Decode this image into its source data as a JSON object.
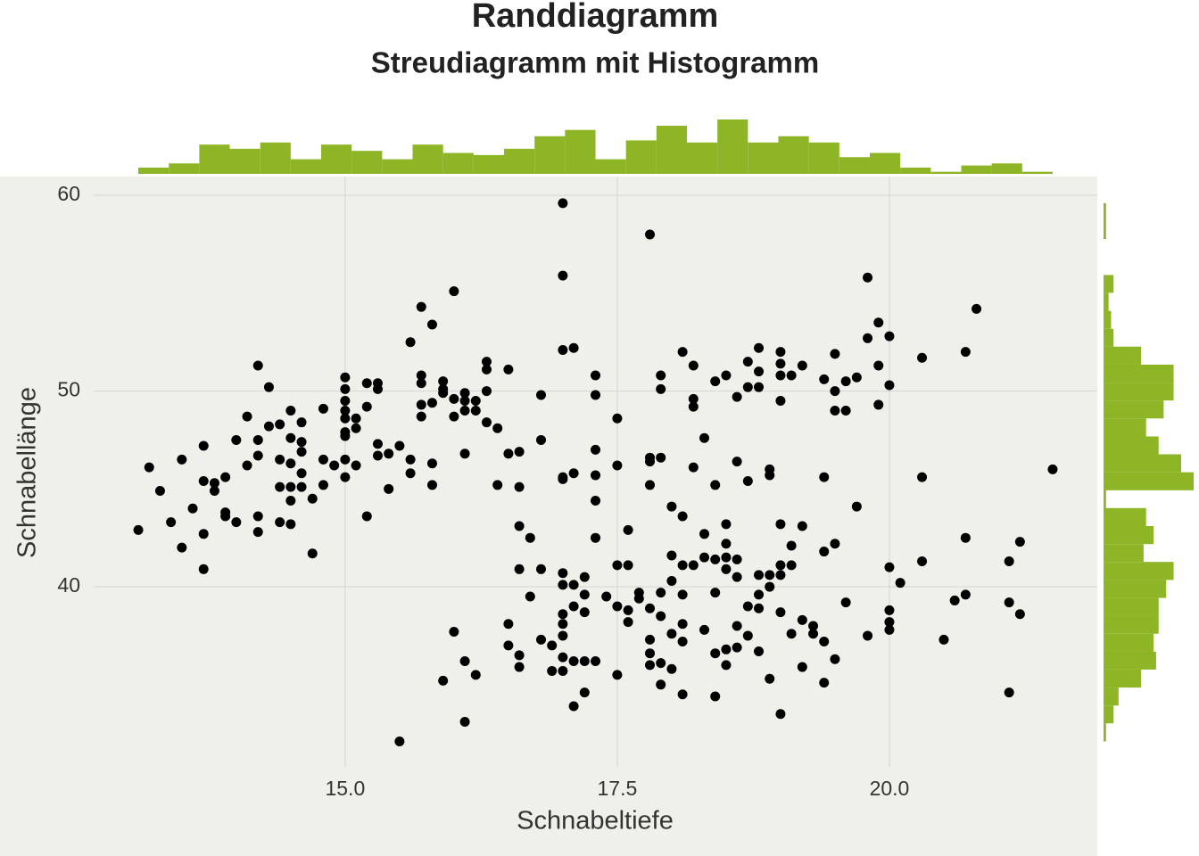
{
  "chart_data": [
    {
      "type": "scatter",
      "title": "Randdiagramm",
      "subtitle": "Streudiagramm mit Histogramm",
      "x_label": "Schnabeltiefe",
      "y_label": "Schnabellänge",
      "color": "#000000",
      "grid": true,
      "xlim": [
        12.69,
        21.91
      ],
      "ylim": [
        30.8,
        60.96
      ],
      "xticks": [
        {
          "value": 15,
          "label": "15.0"
        },
        17.5,
        {
          "value": 20,
          "label": "20.0"
        }
      ],
      "yticks": [
        40,
        50,
        60
      ],
      "x": [
        13.1,
        13.2,
        13.3,
        13.4,
        13.5,
        13.5,
        13.6,
        13.7,
        13.7,
        13.7,
        13.7,
        13.8,
        13.8,
        13.9,
        13.9,
        13.9,
        14.0,
        14.0,
        14.1,
        14.1,
        14.2,
        14.2,
        14.2,
        14.2,
        14.2,
        14.3,
        14.3,
        14.4,
        14.4,
        14.4,
        14.4,
        14.5,
        14.5,
        14.5,
        14.5,
        14.5,
        14.5,
        14.6,
        14.6,
        14.6,
        14.6,
        14.6,
        14.7,
        14.7,
        14.8,
        14.8,
        14.8,
        14.9,
        15.0,
        15.0,
        15.0,
        15.0,
        15.0,
        15.0,
        15.0,
        15.0,
        15.0,
        15.1,
        15.1,
        15.1,
        15.2,
        15.2,
        15.2,
        15.3,
        15.3,
        15.3,
        15.3,
        15.4,
        15.4,
        15.5,
        15.6,
        15.6,
        15.6,
        15.7,
        15.7,
        15.7,
        15.7,
        15.7,
        15.8,
        15.8,
        15.8,
        15.8,
        15.9,
        15.9,
        15.9,
        16.0,
        16.0,
        16.0,
        16.0,
        16.1,
        16.1,
        16.1,
        16.1,
        16.1,
        16.1,
        16.2,
        16.2,
        16.2,
        16.3,
        16.3,
        16.3,
        16.3,
        16.4,
        16.4,
        16.5,
        16.5,
        16.5,
        16.5,
        16.6,
        16.6,
        16.6,
        16.6,
        16.6,
        16.6,
        16.7,
        16.7,
        16.8,
        16.8,
        16.8,
        16.8,
        16.9,
        16.9,
        17.0,
        17.0,
        17.0,
        17.0,
        17.0,
        17.0,
        17.0,
        17.0,
        17.0,
        17.0,
        17.0,
        17.0,
        17.1,
        17.1,
        17.1,
        17.1,
        17.1,
        17.1,
        17.2,
        17.2,
        17.2,
        17.2,
        17.2,
        17.3,
        17.3,
        17.3,
        17.3,
        17.3,
        17.3,
        17.3,
        17.4,
        17.5,
        17.5,
        17.5,
        17.5,
        17.5,
        17.6,
        17.6,
        17.6,
        17.6,
        17.7,
        17.7,
        17.8,
        17.8,
        17.8,
        17.8,
        17.8,
        17.8,
        17.8,
        17.8,
        17.9,
        17.9,
        17.9,
        17.9,
        17.9,
        17.9,
        17.9,
        18.0,
        18.0,
        18.0,
        18.0,
        18.0,
        18.1,
        18.1,
        18.1,
        18.1,
        18.1,
        18.1,
        18.1,
        18.2,
        18.2,
        18.2,
        18.2,
        18.2,
        18.3,
        18.3,
        18.3,
        18.3,
        18.4,
        18.4,
        18.4,
        18.4,
        18.4,
        18.4,
        18.5,
        18.5,
        18.5,
        18.5,
        18.5,
        18.5,
        18.5,
        18.6,
        18.6,
        18.6,
        18.6,
        18.6,
        18.6,
        18.7,
        18.7,
        18.7,
        18.7,
        18.7,
        18.8,
        18.8,
        18.8,
        18.8,
        18.8,
        18.8,
        18.8,
        18.9,
        18.9,
        18.9,
        18.9,
        18.9,
        19.0,
        19.0,
        19.0,
        19.0,
        19.0,
        19.0,
        19.0,
        19.0,
        19.0,
        19.1,
        19.1,
        19.1,
        19.1,
        19.2,
        19.2,
        19.2,
        19.2,
        19.3,
        19.3,
        19.4,
        19.4,
        19.4,
        19.4,
        19.4,
        19.5,
        19.5,
        19.5,
        19.5,
        19.5,
        19.6,
        19.6,
        19.6,
        19.7,
        19.7,
        19.8,
        19.8,
        19.8,
        19.9,
        19.9,
        19.9,
        20.0,
        20.0,
        20.0,
        20.0,
        20.0,
        20.0,
        20.1,
        20.3,
        20.3,
        20.3,
        20.5,
        20.6,
        20.7,
        20.7,
        20.7,
        20.8,
        21.1,
        21.1,
        21.1,
        21.2,
        21.2,
        21.5,
        15.5,
        15.9
      ],
      "y": [
        42.9,
        46.1,
        44.9,
        43.3,
        46.5,
        42.0,
        44.0,
        47.2,
        45.4,
        42.7,
        40.9,
        45.3,
        44.9,
        45.6,
        43.8,
        43.6,
        47.5,
        43.3,
        48.7,
        46.2,
        51.3,
        47.5,
        46.7,
        43.6,
        42.8,
        50.2,
        48.2,
        48.3,
        46.5,
        45.1,
        43.3,
        49.0,
        47.6,
        46.3,
        45.1,
        44.4,
        43.2,
        48.4,
        47.4,
        46.9,
        45.8,
        45.1,
        44.5,
        41.7,
        49.1,
        46.5,
        45.2,
        46.2,
        50.7,
        50.1,
        49.5,
        49.0,
        48.6,
        47.9,
        47.7,
        46.5,
        45.6,
        48.6,
        48.1,
        46.2,
        50.4,
        49.2,
        43.6,
        50.4,
        50.1,
        47.3,
        46.7,
        46.8,
        45.0,
        47.2,
        52.5,
        46.5,
        45.8,
        54.3,
        50.8,
        50.4,
        49.3,
        48.7,
        53.4,
        49.4,
        46.3,
        45.2,
        50.5,
        50.1,
        49.9,
        55.1,
        49.6,
        48.7,
        37.7,
        49.9,
        49.5,
        49.0,
        46.8,
        36.2,
        33.1,
        49.5,
        49.0,
        35.5,
        51.5,
        51.1,
        50.0,
        48.4,
        48.1,
        45.2,
        51.1,
        46.8,
        38.1,
        37.0,
        46.9,
        45.1,
        43.1,
        40.9,
        36.5,
        35.9,
        42.5,
        39.5,
        49.8,
        47.5,
        40.9,
        37.3,
        37.0,
        35.7,
        59.6,
        55.9,
        52.1,
        45.6,
        45.5,
        40.7,
        40.1,
        38.6,
        38.1,
        37.5,
        36.4,
        35.7,
        52.2,
        45.8,
        40.1,
        39.0,
        36.2,
        33.9,
        40.5,
        39.6,
        38.7,
        36.2,
        34.6,
        50.8,
        49.8,
        47.0,
        45.7,
        44.4,
        42.5,
        36.2,
        39.5,
        48.6,
        46.2,
        41.1,
        39.0,
        35.5,
        42.9,
        41.1,
        38.8,
        38.2,
        39.7,
        39.4,
        58.0,
        46.6,
        46.4,
        45.2,
        38.9,
        37.3,
        36.6,
        36.0,
        50.8,
        50.1,
        46.6,
        39.7,
        38.5,
        36.1,
        35.0,
        44.1,
        41.6,
        40.3,
        37.6,
        35.8,
        52.0,
        43.6,
        41.1,
        39.6,
        38.1,
        37.2,
        34.5,
        51.3,
        49.6,
        49.2,
        46.1,
        41.1,
        47.6,
        42.7,
        41.5,
        37.8,
        50.5,
        45.2,
        41.4,
        39.7,
        36.6,
        34.4,
        50.8,
        43.2,
        42.2,
        41.5,
        40.9,
        36.8,
        36.0,
        49.7,
        46.4,
        41.4,
        40.5,
        38.0,
        36.9,
        51.5,
        50.2,
        45.4,
        39.0,
        37.5,
        52.2,
        50.2,
        51.0,
        40.6,
        39.6,
        38.9,
        36.7,
        46.0,
        45.7,
        40.6,
        40.0,
        35.3,
        52.0,
        51.4,
        50.8,
        49.5,
        43.2,
        41.1,
        40.6,
        38.7,
        33.5,
        50.8,
        42.1,
        41.1,
        37.6,
        51.3,
        43.1,
        38.3,
        35.9,
        38.0,
        37.6,
        50.6,
        45.6,
        41.8,
        37.2,
        35.1,
        51.9,
        50.0,
        49.0,
        42.2,
        36.3,
        50.5,
        49.0,
        39.2,
        50.7,
        44.1,
        55.8,
        52.7,
        37.5,
        53.5,
        51.3,
        49.3,
        52.8,
        50.3,
        41.0,
        38.8,
        38.2,
        37.8,
        40.2,
        51.7,
        45.6,
        41.3,
        37.3,
        39.3,
        52.0,
        42.5,
        39.6,
        54.2,
        41.3,
        39.2,
        34.6,
        42.3,
        38.6,
        46.0,
        32.1,
        35.2
      ]
    },
    {
      "type": "histogram",
      "orientation": "vertical",
      "color": "#8db526",
      "bins": [
        13.1,
        13.38,
        13.66,
        13.94,
        14.22,
        14.5,
        14.78,
        15.06,
        15.34,
        15.62,
        15.9,
        16.18,
        16.46,
        16.74,
        17.02,
        17.3,
        17.58,
        17.86,
        18.14,
        18.42,
        18.7,
        18.98,
        19.26,
        19.54,
        19.82,
        20.1,
        20.38,
        20.66,
        20.94,
        21.22,
        21.5
      ],
      "counts": [
        3,
        5,
        14,
        12,
        15,
        7,
        14,
        11,
        7,
        14,
        10,
        9,
        12,
        18,
        21,
        7,
        16,
        23,
        15,
        26,
        15,
        18,
        15,
        8,
        10,
        3,
        1,
        4,
        5,
        1
      ]
    },
    {
      "type": "histogram",
      "orientation": "horizontal",
      "color": "#8db526",
      "bins": [
        32.1,
        33.02,
        33.93,
        34.85,
        35.77,
        36.68,
        37.6,
        38.52,
        39.43,
        40.35,
        41.27,
        42.18,
        43.1,
        44.02,
        44.93,
        45.85,
        46.77,
        47.68,
        48.6,
        49.52,
        50.43,
        51.35,
        52.27,
        53.18,
        54.1,
        55.02,
        55.93,
        56.85,
        57.77,
        58.68,
        59.6
      ],
      "counts": [
        1,
        4,
        6,
        15,
        21,
        20,
        22,
        22,
        25,
        28,
        16,
        20,
        17,
        1,
        36,
        31,
        22,
        17,
        24,
        28,
        28,
        15,
        4,
        3,
        2,
        4,
        0,
        0,
        1,
        1
      ]
    }
  ]
}
